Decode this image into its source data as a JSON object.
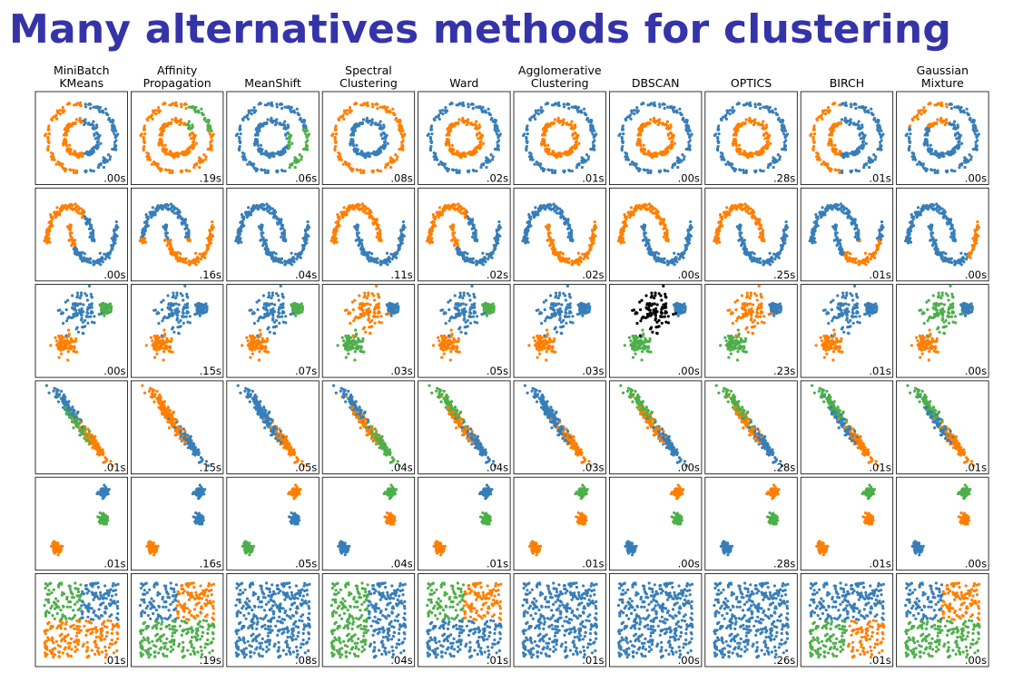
{
  "slide": {
    "title": "Many alternatives methods for clustering"
  },
  "colors": {
    "blue": "#377eb8",
    "orange": "#ff7f00",
    "green": "#4daf4a",
    "pink": "#f781bf",
    "noise": "#000000",
    "title": "#3533a8"
  },
  "chart_data": {
    "type": "scatter",
    "grid": false,
    "layout": "6 datasets (rows) x 10 algorithms (columns), small-multiples grid",
    "algorithms": [
      [
        "MiniBatch",
        "KMeans"
      ],
      [
        "Affinity",
        "Propagation"
      ],
      [
        "MeanShift"
      ],
      [
        "Spectral",
        "Clustering"
      ],
      [
        "Ward"
      ],
      [
        "Agglomerative",
        "Clustering"
      ],
      [
        "DBSCAN"
      ],
      [
        "OPTICS"
      ],
      [
        "BIRCH"
      ],
      [
        "Gaussian",
        "Mixture"
      ]
    ],
    "datasets": [
      "noisy_circles",
      "noisy_moons",
      "varied",
      "aniso",
      "blobs",
      "no_structure"
    ],
    "timings": [
      [
        ".00s",
        ".19s",
        ".06s",
        ".08s",
        ".02s",
        ".01s",
        ".00s",
        ".28s",
        ".01s",
        ".00s"
      ],
      [
        ".00s",
        ".16s",
        ".04s",
        ".11s",
        ".02s",
        ".02s",
        ".00s",
        ".25s",
        ".01s",
        ".00s"
      ],
      [
        ".00s",
        ".15s",
        ".07s",
        ".03s",
        ".05s",
        ".03s",
        ".00s",
        ".23s",
        ".01s",
        ".00s"
      ],
      [
        ".01s",
        ".15s",
        ".05s",
        ".04s",
        ".04s",
        ".03s",
        ".00s",
        ".28s",
        ".01s",
        ".01s"
      ],
      [
        ".01s",
        ".16s",
        ".05s",
        ".04s",
        ".01s",
        ".01s",
        ".00s",
        ".28s",
        ".01s",
        ".00s"
      ],
      [
        ".01s",
        ".19s",
        ".08s",
        ".04s",
        ".01s",
        ".01s",
        ".00s",
        ".26s",
        ".01s",
        ".00s"
      ]
    ],
    "rules": {
      "noisy_circles": [
        "region:x<0.05:o|b",
        "region:y>0.2&&x>0.3:g|o",
        "region:x>0.45&&y<0.3:g|b",
        "ring:o|b",
        "ring:b|o",
        "ring:b|o",
        "ring:b|o",
        "ring:b|o",
        "region:x<-0.15:o|b",
        "region:x<0.2&&y>0.3:o|b"
      ],
      "noisy_moons": [
        "region:y>-0.1&&x<0.6:o|b",
        "region:y>0.15&&x<1.35:b|o",
        "region:x>1.1&&x<1.5&&y>-0.2:o|b",
        "moon:o|b",
        "region:y>-0.1&&x<0.6:o|b",
        "moon:b|o",
        "moon:o|b",
        "moon:o|b",
        "region:y<0.1&&x>0.4:o|b",
        "region:x>1.6:o|b"
      ],
      "varied": [
        "blob:b,g,o",
        "blob:b,b,o",
        "blob:b,g,o",
        "blob:o,b,g",
        "blob:b,g,o",
        "blob:b,b,o",
        "blob:k,b,g",
        "blob:o,b,g",
        "blob:b,b,o",
        "blob:g,b,o"
      ],
      "aniso": [
        "aniso:b,g,o",
        "aniso:o,o,b",
        "aniso:b,b,o",
        "aniso:b,o,g",
        "aniso:g,o,b",
        "aniso:b,b,o",
        "aniso:g,o,b",
        "aniso:g,o,b",
        "aniso:g,b,o",
        "aniso:g,b,o"
      ],
      "blobs": [
        "blob:b,g,o",
        "blob:b,b,o",
        "blob:o,b,g",
        "blob:g,o,b",
        "blob:b,g,o",
        "blob:g,o,o",
        "blob:o,g,b",
        "blob:o,g,b",
        "blob:g,o,o",
        "blob:g,o,b"
      ],
      "no_structure": [
        "quad:g,b,o,o",
        "quad:b,o,g,g",
        "flat:b",
        "quad:g,b,g,b",
        "quad:g,o,b,b",
        "flat:b",
        "flat:b",
        "flat:b",
        "quad:b,b,g,o",
        "quad:b,o,g,g"
      ]
    }
  }
}
